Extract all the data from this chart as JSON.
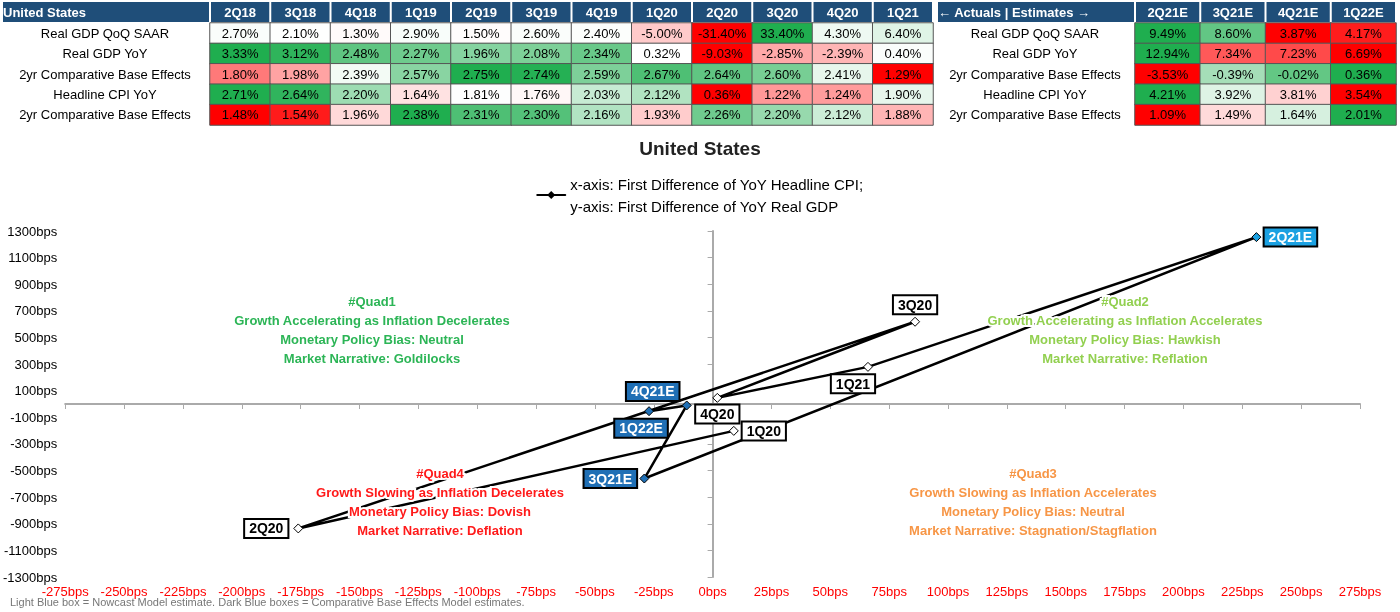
{
  "chart_data": [
    {
      "type": "heatmap",
      "title": "United States",
      "categories": [
        "2Q18",
        "3Q18",
        "4Q18",
        "1Q19",
        "2Q19",
        "3Q19",
        "4Q19",
        "1Q20",
        "2Q20",
        "3Q20",
        "4Q20",
        "1Q21"
      ],
      "y_categories": [
        "Real GDP QoQ SAAR",
        "Real GDP YoY",
        "2yr Comparative Base Effects",
        "Headline CPI YoY",
        "2yr Comparative Base Effects"
      ],
      "cells": [
        [
          2.7,
          2.1,
          1.3,
          2.9,
          1.5,
          2.6,
          2.4,
          -5.0,
          -31.4,
          33.4,
          4.3,
          6.4
        ],
        [
          3.33,
          3.12,
          2.48,
          2.27,
          1.96,
          2.08,
          2.34,
          0.32,
          -9.03,
          -2.85,
          -2.39,
          0.4
        ],
        [
          1.8,
          1.98,
          2.39,
          2.57,
          2.75,
          2.74,
          2.59,
          2.67,
          2.64,
          2.6,
          2.41,
          1.29
        ],
        [
          2.71,
          2.64,
          2.2,
          1.64,
          1.81,
          1.76,
          2.03,
          2.12,
          0.36,
          1.22,
          1.24,
          1.9
        ],
        [
          1.48,
          1.54,
          1.96,
          2.38,
          2.31,
          2.3,
          2.16,
          1.93,
          2.26,
          2.2,
          2.12,
          1.88
        ]
      ],
      "cell_labels": [
        [
          "2.70%",
          "2.10%",
          "1.30%",
          "2.90%",
          "1.50%",
          "2.60%",
          "2.40%",
          "-5.00%",
          "-31.40%",
          "33.40%",
          "4.30%",
          "6.40%"
        ],
        [
          "3.33%",
          "3.12%",
          "2.48%",
          "2.27%",
          "1.96%",
          "2.08%",
          "2.34%",
          "0.32%",
          "-9.03%",
          "-2.85%",
          "-2.39%",
          "0.40%"
        ],
        [
          "1.80%",
          "1.98%",
          "2.39%",
          "2.57%",
          "2.75%",
          "2.74%",
          "2.59%",
          "2.67%",
          "2.64%",
          "2.60%",
          "2.41%",
          "1.29%"
        ],
        [
          "2.71%",
          "2.64%",
          "2.20%",
          "1.64%",
          "1.81%",
          "1.76%",
          "2.03%",
          "2.12%",
          "0.36%",
          "1.22%",
          "1.24%",
          "1.90%"
        ],
        [
          "1.48%",
          "1.54%",
          "1.96%",
          "2.38%",
          "2.31%",
          "2.30%",
          "2.16%",
          "1.93%",
          "2.26%",
          "2.20%",
          "2.12%",
          "1.88%"
        ]
      ]
    },
    {
      "type": "heatmap",
      "title": "← Actuals | Estimates →",
      "categories": [
        "2Q21E",
        "3Q21E",
        "4Q21E",
        "1Q22E"
      ],
      "y_categories": [
        "Real GDP QoQ SAAR",
        "Real GDP YoY",
        "2yr Comparative Base Effects",
        "Headline CPI YoY",
        "2yr Comparative Base Effects"
      ],
      "cells": [
        [
          9.49,
          8.6,
          3.87,
          4.17
        ],
        [
          12.94,
          7.34,
          7.23,
          6.69
        ],
        [
          -3.53,
          -0.39,
          -0.02,
          0.36
        ],
        [
          4.21,
          3.92,
          3.81,
          3.54
        ],
        [
          1.09,
          1.49,
          1.64,
          2.01
        ]
      ],
      "cell_labels": [
        [
          "9.49%",
          "8.60%",
          "3.87%",
          "4.17%"
        ],
        [
          "12.94%",
          "7.34%",
          "7.23%",
          "6.69%"
        ],
        [
          "-3.53%",
          "-0.39%",
          "-0.02%",
          "0.36%"
        ],
        [
          "4.21%",
          "3.92%",
          "3.81%",
          "3.54%"
        ],
        [
          "1.09%",
          "1.49%",
          "1.64%",
          "2.01%"
        ]
      ]
    },
    {
      "type": "line",
      "title": "United States",
      "x": [
        9,
        -176,
        86,
        2,
        66,
        231,
        -29,
        -11,
        -27
      ],
      "series": [
        {
          "name": "x-axis: First Difference of YoY Headline CPI;\ny-axis: First Difference of YoY Real GDP",
          "color": "#000000",
          "values": [
            -202,
            -935,
            618,
            46,
            279,
            1254,
            -560,
            -11,
            -54
          ],
          "colors": [
            "#ffffff",
            "#ffffff",
            "#ffffff",
            "#ffffff",
            "#ffffff",
            "#1ba1e2",
            "#1f6fb5",
            "#1f6fb5",
            "#1f6fb5"
          ]
        }
      ],
      "xlim": [
        -275,
        275
      ],
      "xticks": [
        {
          "value": -275,
          "label": "-275bps"
        },
        {
          "value": -250,
          "label": "-250bps"
        },
        {
          "value": -225,
          "label": "-225bps"
        },
        {
          "value": -200,
          "label": "-200bps"
        },
        {
          "value": -175,
          "label": "-175bps"
        },
        {
          "value": -150,
          "label": "-150bps"
        },
        {
          "value": -125,
          "label": "-125bps"
        },
        {
          "value": -100,
          "label": "-100bps"
        },
        {
          "value": -75,
          "label": "-75bps"
        },
        {
          "value": -50,
          "label": "-50bps"
        },
        {
          "value": -25,
          "label": "-25bps"
        },
        {
          "value": 0,
          "label": "0bps"
        },
        {
          "value": 25,
          "label": "25bps"
        },
        {
          "value": 50,
          "label": "50bps"
        },
        {
          "value": 75,
          "label": "75bps"
        },
        {
          "value": 100,
          "label": "100bps"
        },
        {
          "value": 125,
          "label": "125bps"
        },
        {
          "value": 150,
          "label": "150bps"
        },
        {
          "value": 175,
          "label": "175bps"
        },
        {
          "value": 200,
          "label": "200bps"
        },
        {
          "value": 225,
          "label": "225bps"
        },
        {
          "value": 250,
          "label": "250bps"
        },
        {
          "value": 275,
          "label": "275bps"
        }
      ],
      "ylim": [
        -1300,
        1300
      ],
      "yticks": [
        {
          "value": -1300,
          "label": "-1300bps"
        },
        {
          "value": -1100,
          "label": "-1100bps"
        },
        {
          "value": -900,
          "label": "-900bps"
        },
        {
          "value": -700,
          "label": "-700bps"
        },
        {
          "value": -500,
          "label": "-500bps"
        },
        {
          "value": -300,
          "label": "-300bps"
        },
        {
          "value": -100,
          "label": "-100bps"
        },
        {
          "value": 100,
          "label": "100bps"
        },
        {
          "value": 300,
          "label": "300bps"
        },
        {
          "value": 500,
          "label": "500bps"
        },
        {
          "value": 700,
          "label": "700bps"
        },
        {
          "value": 900,
          "label": "900bps"
        },
        {
          "value": 1100,
          "label": "1100bps"
        },
        {
          "value": 1300,
          "label": "1300bps"
        }
      ],
      "marker": "diamond",
      "legend": "top",
      "annotations": [
        "#Quad1\nGrowth Accelerating as Inflation Decelerates\nMonetary Policy Bias: Neutral\nMarket Narrative: Goldilocks",
        "#Quad2\nGrowth Accelerating as Inflation Accelerates\nMonetary Policy Bias: Hawkish\nMarket Narrative: Reflation",
        "#Quad3\nGrowth Slowing as Inflation Accelerates\nMonetary Policy Bias: Neutral\nMarket Narrative: Stagnation/Stagflation",
        "#Quad4\nGrowth Slowing as Inflation Decelerates\nMonetary Policy Bias: Dovish\nMarket Narrative: Deflation",
        "Light Blue box = Nowcast Model estimate. Dark Blue boxes = Comparative Base Effects Model estimates.",
        {
          "text": "1Q20",
          "x": 9,
          "y": -202
        },
        {
          "text": "2Q20",
          "x": -176,
          "y": -935
        },
        {
          "text": "3Q20",
          "x": 86,
          "y": 618
        },
        {
          "text": "4Q20",
          "x": 2,
          "y": 46
        },
        {
          "text": "1Q21",
          "x": 66,
          "y": 279
        },
        {
          "text": "2Q21E",
          "x": 231,
          "y": 1254
        },
        {
          "text": "3Q21E",
          "x": -29,
          "y": -560
        },
        {
          "text": "4Q21E",
          "x": -11,
          "y": -11
        },
        {
          "text": "1Q22E",
          "x": -27,
          "y": -54
        }
      ]
    }
  ]
}
